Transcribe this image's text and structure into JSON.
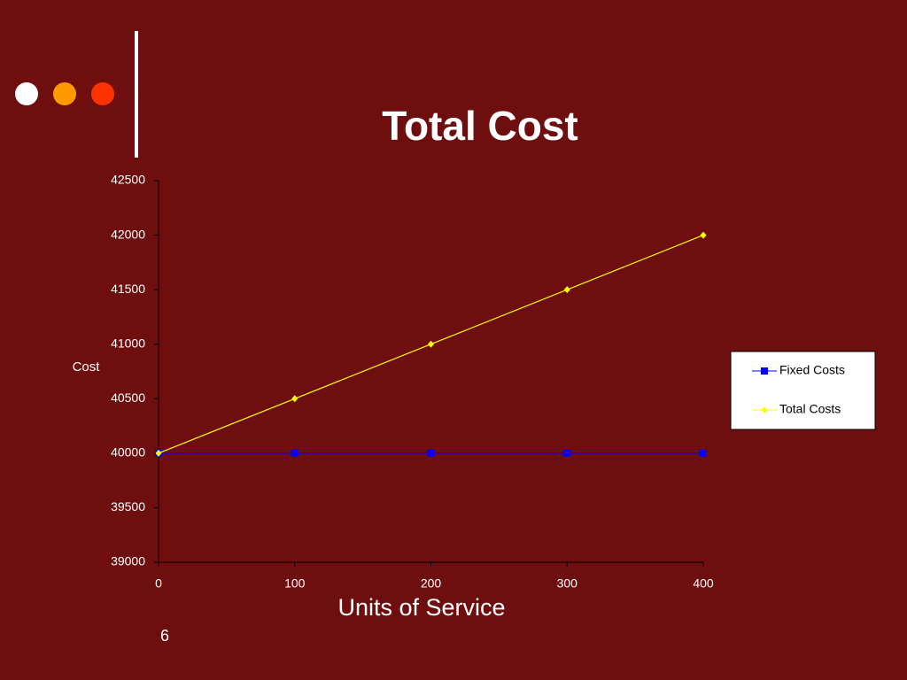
{
  "chart_data": {
    "type": "line",
    "title": "Total Cost",
    "x": [
      0,
      100,
      200,
      300,
      400
    ],
    "series": [
      {
        "name": "Fixed Costs",
        "color": "#0000ff",
        "marker": "square",
        "values": [
          40000,
          40000,
          40000,
          40000,
          40000
        ]
      },
      {
        "name": "Total Costs",
        "color": "#ffff00",
        "marker": "diamond",
        "values": [
          40000,
          40500,
          41000,
          41500,
          42000
        ]
      }
    ],
    "xlabel": "Units of Service",
    "ylabel": "Cost",
    "xlim": [
      0,
      400
    ],
    "xticks": [
      0,
      100,
      200,
      300,
      400
    ],
    "ylim": [
      39000,
      42500
    ],
    "yticks": [
      39000,
      39500,
      40000,
      40500,
      41000,
      41500,
      42000,
      42500
    ],
    "grid": false,
    "legend": "right"
  },
  "slide_number": 6
}
